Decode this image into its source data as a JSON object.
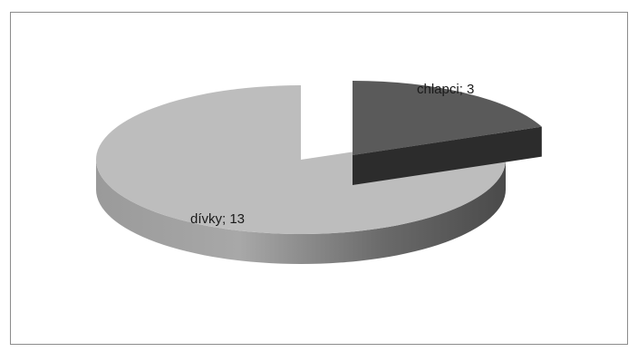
{
  "chart_data": {
    "type": "pie",
    "style": "3d-exploded",
    "title": "",
    "legend": "none",
    "slices": [
      {
        "category": "chlapci",
        "value": 3,
        "label": "chlapci; 3",
        "color": "#5a5a5a"
      },
      {
        "category": "dívky",
        "value": 13,
        "label": "dívky; 13",
        "color": "#bdbdbd"
      }
    ]
  }
}
